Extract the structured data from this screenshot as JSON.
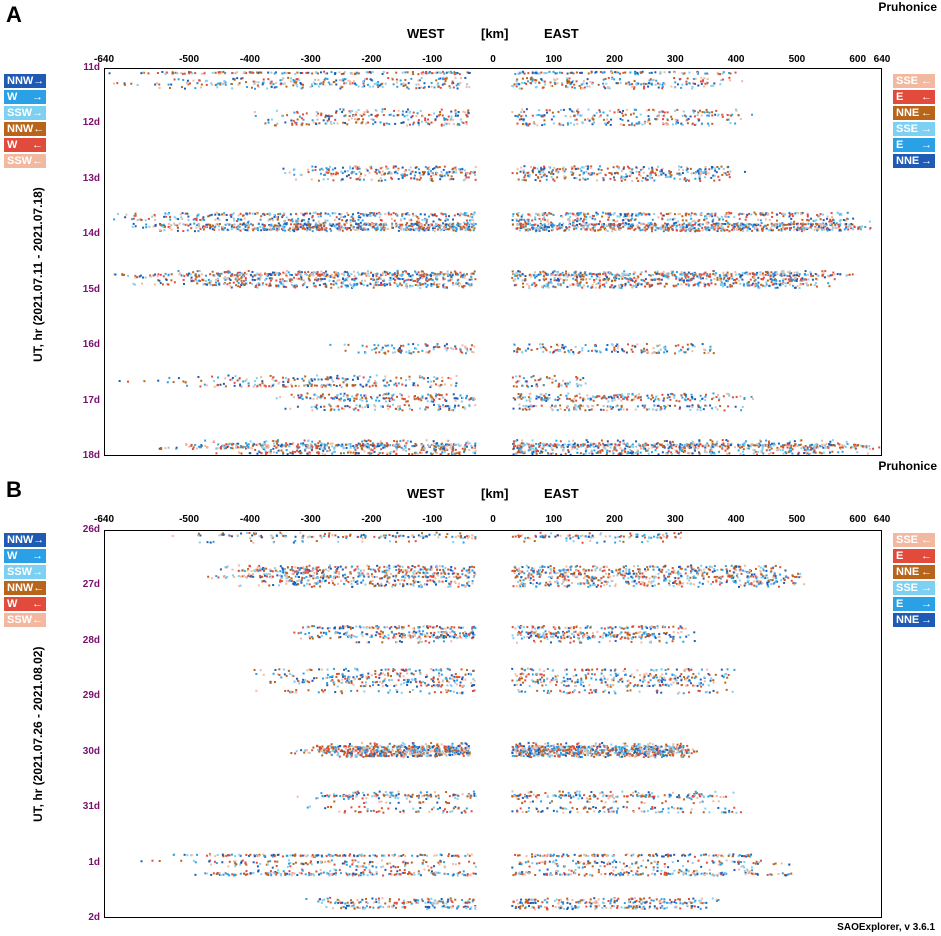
{
  "footer": "SAOExplorer, v 3.6.1",
  "colors": {
    "NNW": "#1f5bb4",
    "W_right": "#2aa0e6",
    "SSW_right": "#7ed0f2",
    "NNW_left": "#b8641a",
    "W_left": "#e24b3c",
    "SSW_left": "#f2b9a0",
    "tick_y": "#7a0f6e"
  },
  "legend_left": [
    {
      "label": "NNW",
      "arrow": "→",
      "color": "#1f5bb4"
    },
    {
      "label": "W",
      "arrow": "→",
      "color": "#2aa0e6"
    },
    {
      "label": "SSW",
      "arrow": "→",
      "color": "#7ed0f2"
    },
    {
      "label": "NNW",
      "arrow": "←",
      "color": "#b8641a"
    },
    {
      "label": "W",
      "arrow": "←",
      "color": "#e24b3c"
    },
    {
      "label": "SSW",
      "arrow": "←",
      "color": "#f2b9a0"
    }
  ],
  "legend_right": [
    {
      "label": "SSE",
      "arrow": "←",
      "color": "#f2b9a0"
    },
    {
      "label": "E",
      "arrow": "←",
      "color": "#e24b3c"
    },
    {
      "label": "NNE",
      "arrow": "←",
      "color": "#b8641a"
    },
    {
      "label": "SSE",
      "arrow": "→",
      "color": "#7ed0f2"
    },
    {
      "label": "E",
      "arrow": "→",
      "color": "#2aa0e6"
    },
    {
      "label": "NNE",
      "arrow": "→",
      "color": "#1f5bb4"
    }
  ],
  "chart_data": [
    {
      "type": "scatter",
      "panel": "A",
      "station": "Pruhonice",
      "west_label": "WEST",
      "unit_label": "[km]",
      "east_label": "EAST",
      "ylabel": "UT, hr (2021.07.11 - 2021.07.18)",
      "x_ticks": [
        "-640",
        "-500",
        "-400",
        "-300",
        "-200",
        "-100",
        "0",
        "100",
        "200",
        "300",
        "400",
        "500",
        "600",
        "640"
      ],
      "x_tick_values": [
        -640,
        -500,
        -400,
        -300,
        -200,
        -100,
        0,
        100,
        200,
        300,
        400,
        500,
        600,
        640
      ],
      "xlim": [
        -640,
        640
      ],
      "y_ticks": [
        "11d",
        "12d",
        "13d",
        "14d",
        "15d",
        "16d",
        "17d",
        "18d"
      ],
      "ylim": [
        0,
        7
      ],
      "bands": [
        {
          "day": 0.2,
          "spread": 0.16,
          "west": [
            -640,
            -40
          ],
          "east": [
            30,
            420
          ],
          "density": 0.8
        },
        {
          "day": 0.85,
          "spread": 0.15,
          "west": [
            -420,
            -40
          ],
          "east": [
            30,
            430
          ],
          "density": 0.7
        },
        {
          "day": 1.85,
          "spread": 0.15,
          "west": [
            -360,
            -30
          ],
          "east": [
            30,
            420
          ],
          "density": 0.9
        },
        {
          "day": 2.75,
          "spread": 0.18,
          "west": [
            -640,
            -30
          ],
          "east": [
            30,
            640
          ],
          "density": 1.6
        },
        {
          "day": 3.8,
          "spread": 0.14,
          "west": [
            -640,
            -30
          ],
          "east": [
            30,
            600
          ],
          "density": 1.4
        },
        {
          "day": 5.05,
          "spread": 0.08,
          "west": [
            -300,
            -30
          ],
          "east": [
            30,
            380
          ],
          "density": 0.4
        },
        {
          "day": 5.65,
          "spread": 0.1,
          "west": [
            -640,
            -60
          ],
          "east": [
            30,
            160
          ],
          "density": 0.5
        },
        {
          "day": 6.0,
          "spread": 0.16,
          "west": [
            -380,
            -30
          ],
          "east": [
            30,
            440
          ],
          "density": 0.9
        },
        {
          "day": 6.85,
          "spread": 0.13,
          "west": [
            -560,
            -30
          ],
          "east": [
            30,
            640
          ],
          "density": 1.2
        }
      ]
    },
    {
      "type": "scatter",
      "panel": "B",
      "station": "Pruhonice",
      "west_label": "WEST",
      "unit_label": "[km]",
      "east_label": "EAST",
      "ylabel": "UT, hr (2021.07.26 - 2021.08.02)",
      "x_ticks": [
        "-640",
        "-500",
        "-400",
        "-300",
        "-200",
        "-100",
        "0",
        "100",
        "200",
        "300",
        "400",
        "500",
        "600",
        "640"
      ],
      "x_tick_values": [
        -640,
        -500,
        -400,
        -300,
        -200,
        -100,
        0,
        100,
        200,
        300,
        400,
        500,
        600,
        640
      ],
      "xlim": [
        -640,
        640
      ],
      "y_ticks": [
        "26d",
        "27d",
        "28d",
        "29d",
        "30d",
        "31d",
        "1d",
        "2d"
      ],
      "ylim": [
        0,
        7
      ],
      "bands": [
        {
          "day": 0.1,
          "spread": 0.08,
          "west": [
            -560,
            -30
          ],
          "east": [
            30,
            330
          ],
          "density": 0.3
        },
        {
          "day": 0.8,
          "spread": 0.18,
          "west": [
            -500,
            -30
          ],
          "east": [
            30,
            520
          ],
          "density": 1.4
        },
        {
          "day": 1.85,
          "spread": 0.15,
          "west": [
            -360,
            -30
          ],
          "east": [
            30,
            340
          ],
          "density": 1.1
        },
        {
          "day": 2.7,
          "spread": 0.22,
          "west": [
            -420,
            -30
          ],
          "east": [
            30,
            400
          ],
          "density": 1.0
        },
        {
          "day": 3.95,
          "spread": 0.12,
          "west": [
            -340,
            -40
          ],
          "east": [
            30,
            340
          ],
          "density": 2.0
        },
        {
          "day": 4.9,
          "spread": 0.18,
          "west": [
            -360,
            -30
          ],
          "east": [
            30,
            420
          ],
          "density": 0.8
        },
        {
          "day": 6.0,
          "spread": 0.22,
          "west": [
            -640,
            -30
          ],
          "east": [
            30,
            500
          ],
          "density": 1.0
        },
        {
          "day": 6.75,
          "spread": 0.1,
          "west": [
            -320,
            -30
          ],
          "east": [
            30,
            380
          ],
          "density": 0.7
        }
      ]
    }
  ]
}
